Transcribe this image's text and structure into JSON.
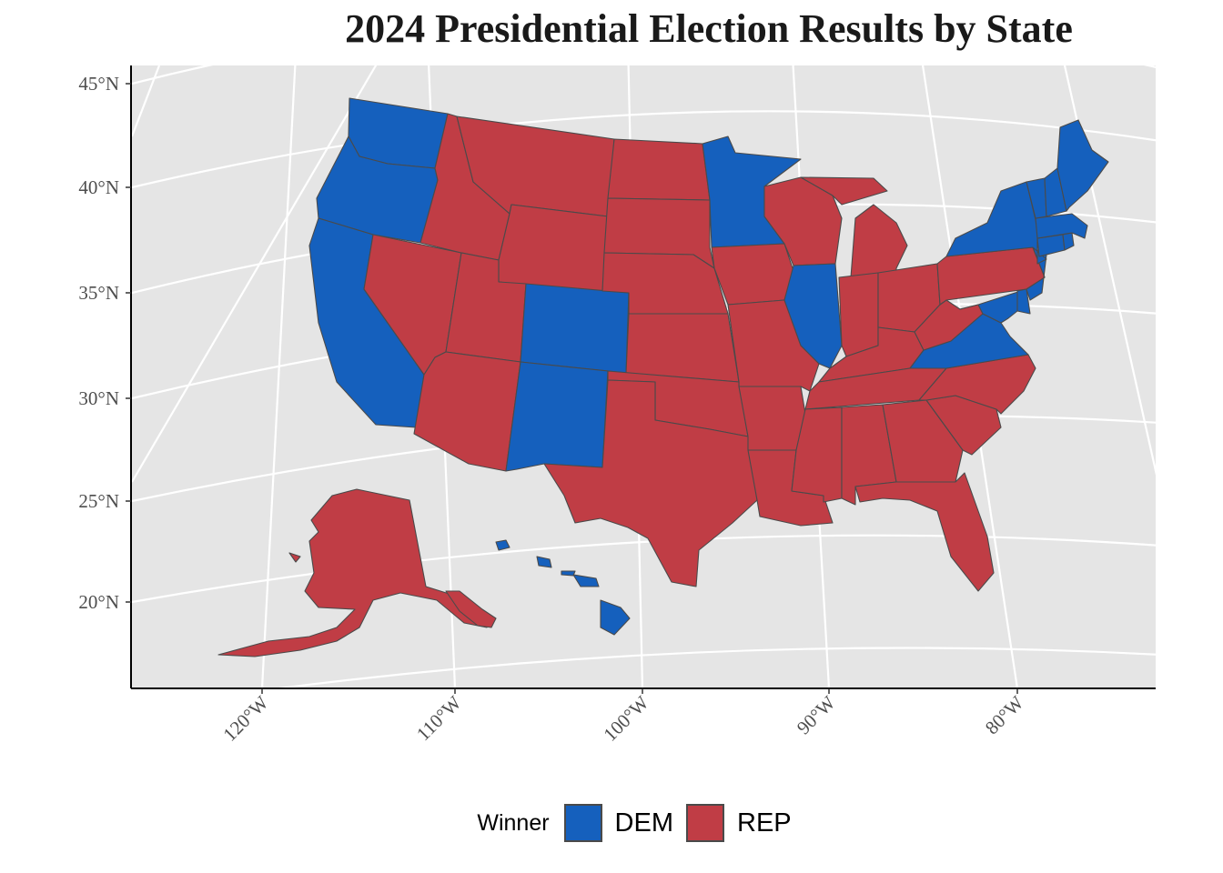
{
  "title": "2024 Presidential Election Results by State",
  "colors": {
    "DEM": "#1560bd",
    "REP": "#c03d45",
    "panel_background": "#e5e5e5",
    "graticule": "#ffffff",
    "state_border": "#4a4a4a"
  },
  "axes": {
    "lat_labels": [
      "45°N",
      "40°N",
      "35°N",
      "30°N",
      "25°N",
      "20°N"
    ],
    "lon_labels": [
      "120°W",
      "110°W",
      "100°W",
      "90°W",
      "80°W"
    ]
  },
  "legend": {
    "title": "Winner",
    "items": [
      {
        "key": "DEM",
        "label": "DEM"
      },
      {
        "key": "REP",
        "label": "REP"
      }
    ]
  },
  "winners": {
    "Washington": "DEM",
    "Oregon": "DEM",
    "California": "DEM",
    "Nevada": "REP",
    "Idaho": "REP",
    "Montana": "REP",
    "Wyoming": "REP",
    "Utah": "REP",
    "Arizona": "REP",
    "Colorado": "DEM",
    "New Mexico": "DEM",
    "North Dakota": "REP",
    "South Dakota": "REP",
    "Nebraska": "REP",
    "Kansas": "REP",
    "Oklahoma": "REP",
    "Texas": "REP",
    "Minnesota": "DEM",
    "Iowa": "REP",
    "Missouri": "REP",
    "Arkansas": "REP",
    "Louisiana": "REP",
    "Wisconsin": "REP",
    "Illinois": "DEM",
    "Michigan": "REP",
    "Indiana": "REP",
    "Ohio": "REP",
    "Kentucky": "REP",
    "Tennessee": "REP",
    "Mississippi": "REP",
    "Alabama": "REP",
    "Georgia": "REP",
    "Florida": "REP",
    "South Carolina": "REP",
    "North Carolina": "REP",
    "Virginia": "DEM",
    "West Virginia": "REP",
    "Pennsylvania": "REP",
    "New York": "DEM",
    "New Jersey": "DEM",
    "Delaware": "DEM",
    "Maryland": "DEM",
    "Connecticut": "DEM",
    "Rhode Island": "DEM",
    "Massachusetts": "DEM",
    "Vermont": "DEM",
    "New Hampshire": "DEM",
    "Maine": "DEM",
    "Alaska": "REP",
    "Hawaii": "DEM"
  }
}
